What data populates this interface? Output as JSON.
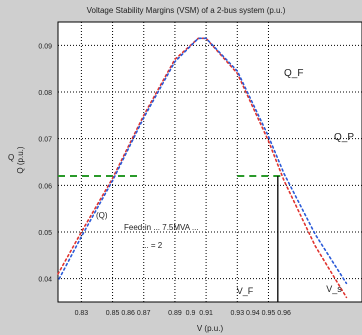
{
  "chart_data": {
    "type": "line",
    "title": "Voltage Stability Margins (VSM) of a 2-bus system (p.u.)",
    "xlabel": "V (p.u.)",
    "ylabel": "Q (p.u.)",
    "xlim": [
      0.815,
      1.01
    ],
    "ylim": [
      0.035,
      0.095
    ],
    "xticks": [
      0.83,
      0.85,
      0.86,
      0.87,
      0.89,
      0.9,
      0.91,
      0.93,
      0.94,
      0.95,
      0.96
    ],
    "xtick_labels": [
      "0.83",
      "0.85",
      "0.86",
      "0.87",
      "0.89",
      "0.9",
      "0.91",
      "0.93",
      "0.94",
      "0.95",
      "0.96"
    ],
    "yticks": [
      0.04,
      0.05,
      0.06,
      0.07,
      0.08,
      0.09
    ],
    "ytick_labels": [
      "0.04",
      "0.05",
      "0.06",
      "0.07",
      "0.08",
      "0.09"
    ],
    "grid": true,
    "series": [
      {
        "name": "Q_F",
        "color": "#e0332f",
        "x": [
          0.815,
          0.83,
          0.85,
          0.87,
          0.89,
          0.905,
          0.91,
          0.93,
          0.95,
          0.96,
          0.98,
          1.0
        ],
        "y": [
          0.041,
          0.05,
          0.0615,
          0.075,
          0.087,
          0.0915,
          0.0915,
          0.084,
          0.0695,
          0.061,
          0.047,
          0.036
        ]
      },
      {
        "name": "Q_P",
        "color": "#2a5ad8",
        "x": [
          0.815,
          0.83,
          0.85,
          0.87,
          0.89,
          0.905,
          0.91,
          0.93,
          0.95,
          0.96,
          0.98,
          1.0
        ],
        "y": [
          0.0395,
          0.049,
          0.061,
          0.0745,
          0.0865,
          0.0915,
          0.0915,
          0.0845,
          0.0705,
          0.0625,
          0.0495,
          0.039
        ]
      }
    ],
    "hline": {
      "y": 0.062,
      "color": "#2a9a2a",
      "style": "dash"
    },
    "vline": {
      "x": 0.956,
      "color": "#000000"
    },
    "annotations": {
      "qf_label": "Q_F",
      "qp_label": "Q_P",
      "q_label": "Q",
      "dq_label": "(Q)",
      "vf_label": "V_F",
      "vp_label": "V_s",
      "text_line1": "Feed-in ... 7.5MVA ...",
      "text_line2": "... = 2"
    }
  }
}
